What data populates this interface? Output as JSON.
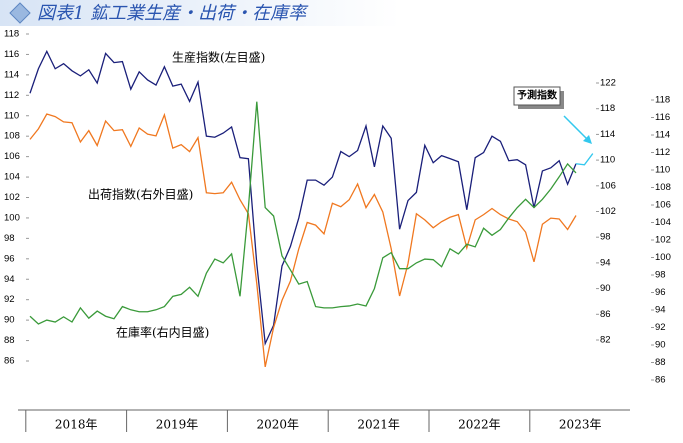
{
  "chart_data": {
    "type": "line",
    "title": "図表1 鉱工業生産・出荷・在庫率",
    "annotations": [
      "生産指数(左目盛)",
      "出荷指数(右外目盛)",
      "在庫率(右内目盛)",
      "予測指数"
    ],
    "categories": [
      null,
      null,
      null,
      null,
      null,
      null,
      "2018年",
      null,
      null,
      null,
      null,
      null,
      null,
      null,
      null,
      null,
      null,
      null,
      "2019年",
      null,
      null,
      null,
      null,
      null,
      null,
      null,
      null,
      null,
      null,
      null,
      "2020年",
      null,
      null,
      null,
      null,
      null,
      null,
      null,
      null,
      null,
      null,
      null,
      "2021年",
      null,
      null,
      null,
      null,
      null,
      null,
      null,
      null,
      null,
      null,
      null,
      "2022年",
      null,
      null,
      null,
      null,
      null,
      null,
      null,
      null,
      null,
      null,
      null,
      "2023年",
      null
    ],
    "ylim": [
      86,
      118
    ],
    "yticks": [
      86,
      88,
      90,
      92,
      94,
      96,
      98,
      100,
      102,
      104,
      106,
      108,
      110,
      112,
      114,
      116,
      118
    ],
    "y2lim": [
      86,
      118
    ],
    "y2ticks": [
      86,
      88,
      90,
      92,
      94,
      96,
      98,
      100,
      102,
      104,
      106,
      108,
      110,
      112,
      114,
      116,
      118
    ],
    "y3lim": [
      82,
      122
    ],
    "y3ticks": [
      82,
      86,
      90,
      94,
      98,
      102,
      106,
      110,
      114,
      118,
      122
    ],
    "series": [
      {
        "name": "生産指数",
        "color": "#1a1f7a",
        "axis": "y",
        "values": [
          112.2,
          114.6,
          116.3,
          114.6,
          115.1,
          114.4,
          113.9,
          114.5,
          113.2,
          116.1,
          115.2,
          115.3,
          112.6,
          114.3,
          113.5,
          113.0,
          114.8,
          112.9,
          113.1,
          111.4,
          113.3,
          108.0,
          107.9,
          108.3,
          108.9,
          105.9,
          105.8,
          95.5,
          87.7,
          89.5,
          95.3,
          97.2,
          100.0,
          103.7,
          103.7,
          103.2,
          104.0,
          106.5,
          106.0,
          106.6,
          109.0,
          105.0,
          109.0,
          107.8,
          98.9,
          101.7,
          102.5,
          107.1,
          105.4,
          106.1,
          105.8,
          105.5,
          100.8,
          105.9,
          106.4,
          108.0,
          107.5,
          105.6,
          105.7,
          105.2,
          101.0,
          104.6,
          104.9,
          105.6,
          103.3,
          105.3,
          null,
          null
        ]
      },
      {
        "name": "出荷指数",
        "color": "#f07820",
        "axis": "y2",
        "values": [
          113.5,
          114.7,
          116.4,
          116.1,
          115.5,
          115.4,
          113.2,
          114.5,
          112.8,
          115.6,
          114.5,
          114.6,
          112.7,
          114.8,
          114.1,
          113.9,
          116.3,
          112.5,
          112.9,
          112.1,
          113.7,
          107.4,
          107.3,
          107.4,
          108.6,
          106.6,
          105.0,
          97.0,
          87.5,
          92.0,
          95.1,
          97.3,
          101.0,
          104.0,
          103.7,
          102.7,
          106.2,
          105.8,
          106.6,
          108.4,
          105.7,
          107.2,
          105.2,
          101.0,
          95.6,
          99.3,
          105.0,
          104.3,
          103.4,
          104.1,
          104.6,
          104.9,
          101.1,
          104.3,
          104.9,
          105.6,
          104.9,
          104.4,
          104.1,
          102.9,
          99.5,
          103.8,
          104.5,
          104.4,
          103.2,
          104.8,
          null,
          null
        ]
      },
      {
        "name": "在庫率",
        "color": "#3a9a3a",
        "axis": "y3",
        "values": [
          85.7,
          84.5,
          85.1,
          84.8,
          85.6,
          84.8,
          87.0,
          85.4,
          86.5,
          85.7,
          85.3,
          87.2,
          86.7,
          86.4,
          86.4,
          86.7,
          87.2,
          88.8,
          89.1,
          90.2,
          88.8,
          92.4,
          94.6,
          94.0,
          95.4,
          88.8,
          102.6,
          119.1,
          102.6,
          101.3,
          95.1,
          92.9,
          90.7,
          91.1,
          87.2,
          87.0,
          87.0,
          87.2,
          87.3,
          87.6,
          87.3,
          90.0,
          94.8,
          95.6,
          93.1,
          93.1,
          94.0,
          94.6,
          94.5,
          93.4,
          96.2,
          95.4,
          96.9,
          96.5,
          99.4,
          98.3,
          99.2,
          101.0,
          102.6,
          103.9,
          102.6,
          103.9,
          105.5,
          107.4,
          109.4,
          108.0,
          null,
          null
        ]
      },
      {
        "name": "予測指数",
        "color": "#33c8ee",
        "axis": "y",
        "values": [
          null,
          null,
          null,
          null,
          null,
          null,
          null,
          null,
          null,
          null,
          null,
          null,
          null,
          null,
          null,
          null,
          null,
          null,
          null,
          null,
          null,
          null,
          null,
          null,
          null,
          null,
          null,
          null,
          null,
          null,
          null,
          null,
          null,
          null,
          null,
          null,
          null,
          null,
          null,
          null,
          null,
          null,
          null,
          null,
          null,
          null,
          null,
          null,
          null,
          null,
          null,
          null,
          null,
          null,
          null,
          null,
          null,
          null,
          null,
          null,
          null,
          null,
          null,
          null,
          null,
          105.3,
          105.2,
          106.3
        ]
      }
    ]
  }
}
